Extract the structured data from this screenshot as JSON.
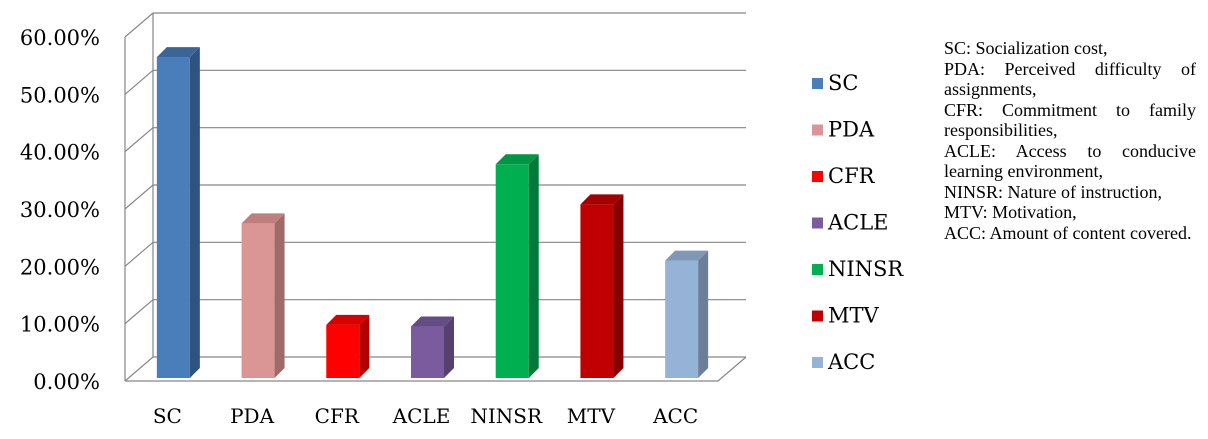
{
  "chart_data": {
    "type": "bar",
    "categories": [
      "SC",
      "PDA",
      "CFR",
      "ACLE",
      "NINSR",
      "MTV",
      "ACC"
    ],
    "values": [
      56.5,
      27.5,
      9.8,
      9.5,
      37.8,
      30.8,
      21.0
    ],
    "ylim": [
      0,
      60
    ],
    "yticks": [
      "0.00%",
      "10.00%",
      "20.00%",
      "30.00%",
      "40.00%",
      "50.00%",
      "60.00%"
    ],
    "grid": true,
    "legend_position": "right",
    "colors": [
      "#4a7ebb",
      "#d99694",
      "#ff0000",
      "#7a5c9e",
      "#00b050",
      "#c00000",
      "#95b3d7"
    ],
    "side_colors": [
      "#2e5380",
      "#a06a68",
      "#b30000",
      "#55406f",
      "#007a38",
      "#870000",
      "#6a7f99"
    ],
    "top_colors": [
      "#3a6599",
      "#c07f7d",
      "#d90000",
      "#654c84",
      "#009644",
      "#a30000",
      "#7f98b8"
    ]
  },
  "notes": [
    "SC: Socialization cost,",
    "PDA: Perceived difficulty of assignments,",
    "CFR: Commitment to family responsibilities,",
    "ACLE: Access to conducive learning environment,",
    "NINSR: Nature of instruction,",
    "MTV: Motivation,",
    "ACC: Amount of content covered."
  ]
}
